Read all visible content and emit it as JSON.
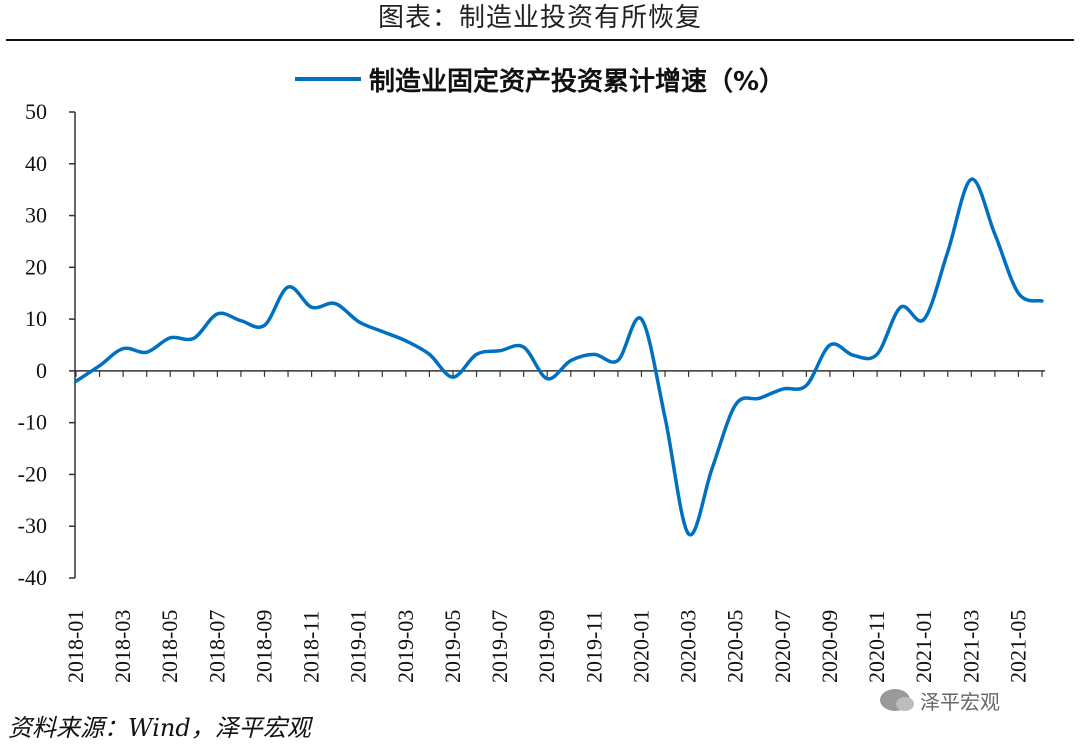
{
  "header": {
    "title": "图表：制造业投资有所恢复"
  },
  "footer": {
    "source": "资料来源：Wind，泽平宏观"
  },
  "watermark": {
    "text": "泽平宏观",
    "icon": "wechat-icon"
  },
  "colors": {
    "line": "#0070c0",
    "axis": "#333333"
  },
  "chart_data": {
    "type": "line",
    "title": "",
    "xlabel": "",
    "ylabel": "",
    "ylim": [
      -40,
      50
    ],
    "yticks": [
      "50",
      "40",
      "30",
      "20",
      "10",
      "0",
      "-10",
      "-20",
      "-30",
      "-40"
    ],
    "ytick_values": [
      50,
      40,
      30,
      20,
      10,
      0,
      -10,
      -20,
      -30,
      -40
    ],
    "xtick_labels": [
      "2018-01",
      "2018-03",
      "2018-05",
      "2018-07",
      "2018-09",
      "2018-11",
      "2019-01",
      "2019-03",
      "2019-05",
      "2019-07",
      "2019-09",
      "2019-11",
      "2020-01",
      "2020-03",
      "2020-05",
      "2020-07",
      "2020-09",
      "2020-11",
      "2021-01",
      "2021-03",
      "2021-05"
    ],
    "legend": {
      "position": "top-center"
    },
    "grid": false,
    "series": [
      {
        "name": "制造业固定资产投资累计增速（%）",
        "x": [
          "2018-01",
          "2018-02",
          "2018-03",
          "2018-04",
          "2018-05",
          "2018-06",
          "2018-07",
          "2018-08",
          "2018-09",
          "2018-10",
          "2018-11",
          "2018-12",
          "2019-01",
          "2019-02",
          "2019-03",
          "2019-04",
          "2019-05",
          "2019-06",
          "2019-07",
          "2019-08",
          "2019-09",
          "2019-10",
          "2019-11",
          "2019-12",
          "2020-01",
          "2020-02",
          "2020-03",
          "2020-04",
          "2020-05",
          "2020-06",
          "2020-07",
          "2020-08",
          "2020-09",
          "2020-10",
          "2020-11",
          "2020-12",
          "2021-01",
          "2021-02",
          "2021-03",
          "2021-04",
          "2021-05",
          "2021-06"
        ],
        "values": [
          -2.0,
          1.0,
          4.3,
          3.6,
          6.4,
          6.3,
          11.0,
          9.7,
          8.8,
          16.2,
          12.3,
          13.0,
          9.5,
          7.6,
          5.8,
          3.2,
          -1.2,
          3.2,
          3.9,
          4.6,
          -1.5,
          2.0,
          3.2,
          2.0,
          10.0,
          -9.0,
          -31.5,
          -18.8,
          -6.5,
          -5.3,
          -3.5,
          -2.8,
          5.0,
          3.0,
          3.2,
          12.3,
          10.0,
          23.0,
          37.0,
          26.4,
          15.0,
          13.5
        ]
      }
    ]
  }
}
